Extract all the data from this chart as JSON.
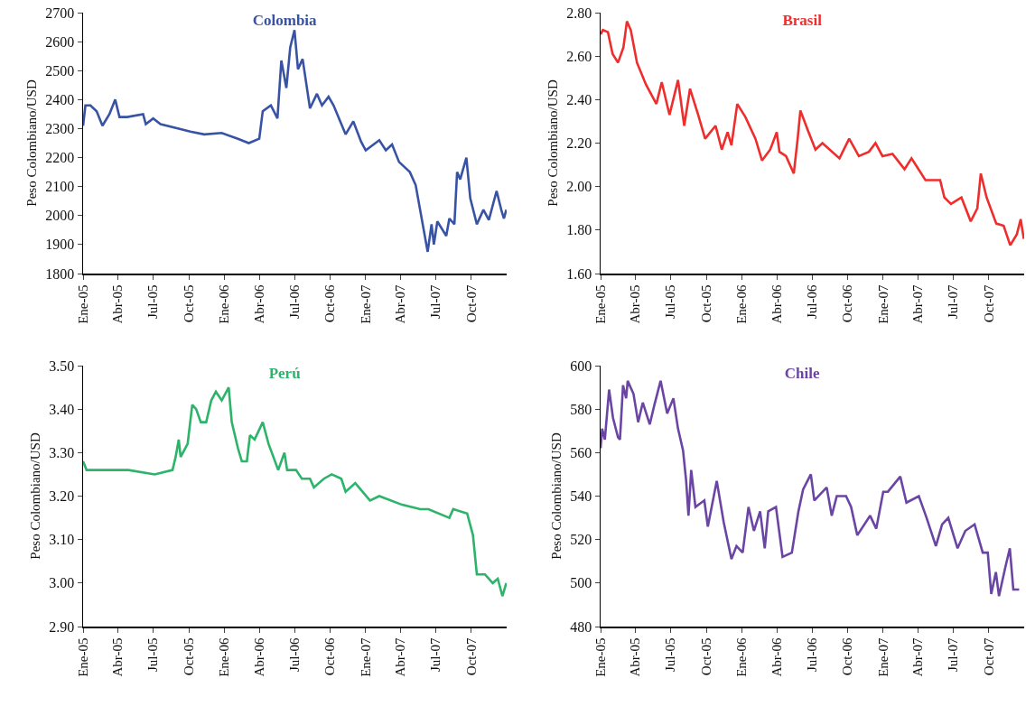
{
  "chart_data": [
    {
      "type": "line",
      "title": "Colombia",
      "ylabel": "Peso Colombiano/USD",
      "grid": false,
      "marker": "none",
      "line_style": "solid",
      "xlim": [
        "2005-01-01",
        "2007-12-31"
      ],
      "xticks": [
        {
          "value": "2005-01-01",
          "label": "Ene-05"
        },
        {
          "value": "2005-04-01",
          "label": "Abr-05"
        },
        {
          "value": "2005-07-01",
          "label": "Jul-05"
        },
        {
          "value": "2005-10-01",
          "label": "Oct-05"
        },
        {
          "value": "2006-01-01",
          "label": "Ene-06"
        },
        {
          "value": "2006-04-01",
          "label": "Abr-06"
        },
        {
          "value": "2006-07-01",
          "label": "Jul-06"
        },
        {
          "value": "2006-10-01",
          "label": "Oct-06"
        },
        {
          "value": "2007-01-01",
          "label": "Ene-07"
        },
        {
          "value": "2007-04-01",
          "label": "Abr-07"
        },
        {
          "value": "2007-07-01",
          "label": "Jul-07"
        },
        {
          "value": "2007-10-01",
          "label": "Oct-07"
        }
      ],
      "ylim": [
        1800,
        2700
      ],
      "yticks": [
        1800,
        1900,
        2000,
        2100,
        2200,
        2300,
        2400,
        2500,
        2600,
        2700
      ],
      "x": [
        "2005-01-01",
        "2005-01-07",
        "2005-01-20",
        "2005-02-05",
        "2005-02-20",
        "2005-03-10",
        "2005-03-25",
        "2005-04-05",
        "2005-04-25",
        "2005-06-05",
        "2005-06-12",
        "2005-07-01",
        "2005-07-20",
        "2005-09-05",
        "2005-10-05",
        "2005-11-10",
        "2005-12-25",
        "2006-02-05",
        "2006-03-05",
        "2006-04-01",
        "2006-04-10",
        "2006-05-01",
        "2006-05-18",
        "2006-05-28",
        "2006-06-10",
        "2006-06-20",
        "2006-07-01",
        "2006-07-10",
        "2006-07-22",
        "2006-08-10",
        "2006-08-28",
        "2006-09-10",
        "2006-09-27",
        "2006-10-10",
        "2006-11-10",
        "2006-11-30",
        "2006-12-20",
        "2007-01-01",
        "2007-02-05",
        "2007-02-22",
        "2007-03-10",
        "2007-03-28",
        "2007-04-25",
        "2007-05-10",
        "2007-06-10",
        "2007-06-20",
        "2007-06-26",
        "2007-07-05",
        "2007-07-28",
        "2007-08-05",
        "2007-08-18",
        "2007-08-25",
        "2007-09-02",
        "2007-09-18",
        "2007-09-28",
        "2007-10-15",
        "2007-11-01",
        "2007-11-15",
        "2007-12-05",
        "2007-12-18",
        "2007-12-24",
        "2007-12-30"
      ],
      "series": [
        {
          "color": "#3953a4",
          "values": [
            2310,
            2380,
            2380,
            2360,
            2310,
            2350,
            2400,
            2340,
            2340,
            2350,
            2315,
            2335,
            2315,
            2300,
            2290,
            2280,
            2285,
            2265,
            2250,
            2265,
            2360,
            2380,
            2335,
            2535,
            2440,
            2580,
            2640,
            2505,
            2540,
            2370,
            2420,
            2380,
            2410,
            2380,
            2280,
            2325,
            2255,
            2225,
            2260,
            2225,
            2245,
            2185,
            2150,
            2105,
            1875,
            1970,
            1900,
            1980,
            1930,
            1990,
            1970,
            2150,
            2125,
            2200,
            2060,
            1970,
            2020,
            1985,
            2085,
            2015,
            1990,
            2020
          ]
        }
      ]
    },
    {
      "type": "line",
      "title": "Brasil",
      "ylabel": "Peso Colombiano/USD",
      "grid": false,
      "marker": "none",
      "line_style": "solid",
      "xlim": [
        "2005-01-01",
        "2007-12-31"
      ],
      "xticks": [
        {
          "value": "2005-01-01",
          "label": "Ene-05"
        },
        {
          "value": "2005-04-01",
          "label": "Abr-05"
        },
        {
          "value": "2005-07-01",
          "label": "Jul-05"
        },
        {
          "value": "2005-10-01",
          "label": "Oct-05"
        },
        {
          "value": "2006-01-01",
          "label": "Ene-06"
        },
        {
          "value": "2006-04-01",
          "label": "Abr-06"
        },
        {
          "value": "2006-07-01",
          "label": "Jul-06"
        },
        {
          "value": "2006-10-01",
          "label": "Oct-06"
        },
        {
          "value": "2007-01-01",
          "label": "Ene-07"
        },
        {
          "value": "2007-04-01",
          "label": "Abr-07"
        },
        {
          "value": "2007-07-01",
          "label": "Jul-07"
        },
        {
          "value": "2007-10-01",
          "label": "Oct-07"
        }
      ],
      "ylim": [
        1.6,
        2.8
      ],
      "yticks": [
        {
          "value": 1.6,
          "label": "1.60"
        },
        {
          "value": 1.8,
          "label": "1.80"
        },
        {
          "value": 2.0,
          "label": "2.00"
        },
        {
          "value": 2.2,
          "label": "2.20"
        },
        {
          "value": 2.4,
          "label": "2.40"
        },
        {
          "value": 2.6,
          "label": "2.60"
        },
        {
          "value": 2.8,
          "label": "2.80"
        }
      ],
      "x": [
        "2005-01-01",
        "2005-01-07",
        "2005-01-20",
        "2005-02-01",
        "2005-02-15",
        "2005-03-01",
        "2005-03-10",
        "2005-03-20",
        "2005-04-05",
        "2005-04-28",
        "2005-05-25",
        "2005-06-08",
        "2005-06-28",
        "2005-07-20",
        "2005-08-05",
        "2005-08-20",
        "2005-09-10",
        "2005-09-28",
        "2005-10-25",
        "2005-11-10",
        "2005-11-25",
        "2005-12-05",
        "2005-12-20",
        "2006-01-10",
        "2006-02-05",
        "2006-02-22",
        "2006-03-15",
        "2006-04-01",
        "2006-04-08",
        "2006-04-25",
        "2006-05-15",
        "2006-05-25",
        "2006-06-01",
        "2006-06-20",
        "2006-07-10",
        "2006-07-28",
        "2006-09-10",
        "2006-10-05",
        "2006-10-30",
        "2006-11-25",
        "2006-12-12",
        "2006-12-30",
        "2007-01-25",
        "2007-02-25",
        "2007-03-15",
        "2007-04-20",
        "2007-05-28",
        "2007-06-08",
        "2007-06-25",
        "2007-07-22",
        "2007-08-15",
        "2007-09-01",
        "2007-09-10",
        "2007-09-25",
        "2007-10-20",
        "2007-11-08",
        "2007-11-25",
        "2007-12-12",
        "2007-12-22",
        "2007-12-30"
      ],
      "series": [
        {
          "color": "#ee2d2d",
          "values": [
            2.7,
            2.72,
            2.71,
            2.61,
            2.57,
            2.64,
            2.76,
            2.72,
            2.57,
            2.47,
            2.38,
            2.48,
            2.33,
            2.49,
            2.28,
            2.45,
            2.33,
            2.22,
            2.28,
            2.17,
            2.25,
            2.19,
            2.38,
            2.32,
            2.22,
            2.12,
            2.17,
            2.25,
            2.16,
            2.14,
            2.06,
            2.22,
            2.35,
            2.26,
            2.17,
            2.2,
            2.13,
            2.22,
            2.14,
            2.16,
            2.2,
            2.14,
            2.15,
            2.08,
            2.13,
            2.03,
            2.03,
            1.95,
            1.92,
            1.95,
            1.84,
            1.9,
            2.06,
            1.95,
            1.83,
            1.82,
            1.73,
            1.78,
            1.85,
            1.76
          ]
        }
      ]
    },
    {
      "type": "line",
      "title": "Perú",
      "ylabel": "Peso Colombiano/USD",
      "grid": false,
      "marker": "none",
      "line_style": "solid",
      "xlim": [
        "2005-01-01",
        "2007-12-31"
      ],
      "xticks": [
        {
          "value": "2005-01-01",
          "label": "Ene-05"
        },
        {
          "value": "2005-04-01",
          "label": "Abr-05"
        },
        {
          "value": "2005-07-01",
          "label": "Jul-05"
        },
        {
          "value": "2005-10-01",
          "label": "Oct-05"
        },
        {
          "value": "2006-01-01",
          "label": "Ene-06"
        },
        {
          "value": "2006-04-01",
          "label": "Abr-06"
        },
        {
          "value": "2006-07-01",
          "label": "Jul-06"
        },
        {
          "value": "2006-10-01",
          "label": "Oct-06"
        },
        {
          "value": "2007-01-01",
          "label": "Ene-07"
        },
        {
          "value": "2007-04-01",
          "label": "Abr-07"
        },
        {
          "value": "2007-07-01",
          "label": "Jul-07"
        },
        {
          "value": "2007-10-01",
          "label": "Oct-07"
        }
      ],
      "ylim": [
        2.9,
        3.5
      ],
      "yticks": [
        {
          "value": 2.9,
          "label": "2.90"
        },
        {
          "value": 3.0,
          "label": "3.00"
        },
        {
          "value": 3.1,
          "label": "3.10"
        },
        {
          "value": 3.2,
          "label": "3.20"
        },
        {
          "value": 3.3,
          "label": "3.30"
        },
        {
          "value": 3.4,
          "label": "3.40"
        },
        {
          "value": 3.5,
          "label": "3.50"
        }
      ],
      "x": [
        "2005-01-01",
        "2005-01-10",
        "2005-03-01",
        "2005-04-28",
        "2005-07-05",
        "2005-08-20",
        "2005-08-28",
        "2005-09-05",
        "2005-09-10",
        "2005-09-28",
        "2005-10-10",
        "2005-10-20",
        "2005-11-01",
        "2005-11-15",
        "2005-11-28",
        "2005-12-10",
        "2005-12-25",
        "2006-01-12",
        "2006-01-20",
        "2006-02-05",
        "2006-02-15",
        "2006-02-28",
        "2006-03-08",
        "2006-03-20",
        "2006-04-10",
        "2006-04-25",
        "2006-05-20",
        "2006-06-05",
        "2006-06-12",
        "2006-07-05",
        "2006-07-20",
        "2006-08-10",
        "2006-08-20",
        "2006-09-15",
        "2006-10-05",
        "2006-10-30",
        "2006-11-10",
        "2006-12-05",
        "2007-01-12",
        "2007-02-05",
        "2007-04-05",
        "2007-05-22",
        "2007-06-12",
        "2007-08-05",
        "2007-08-15",
        "2007-09-20",
        "2007-10-05",
        "2007-10-15",
        "2007-11-05",
        "2007-11-25",
        "2007-12-08",
        "2007-12-20",
        "2007-12-30"
      ],
      "series": [
        {
          "color": "#2db36a",
          "values": [
            3.28,
            3.26,
            3.26,
            3.26,
            3.25,
            3.26,
            3.29,
            3.33,
            3.29,
            3.32,
            3.41,
            3.4,
            3.37,
            3.37,
            3.42,
            3.44,
            3.42,
            3.45,
            3.37,
            3.31,
            3.28,
            3.28,
            3.34,
            3.33,
            3.37,
            3.32,
            3.26,
            3.3,
            3.26,
            3.26,
            3.24,
            3.24,
            3.22,
            3.24,
            3.25,
            3.24,
            3.21,
            3.23,
            3.19,
            3.2,
            3.18,
            3.17,
            3.17,
            3.15,
            3.17,
            3.16,
            3.11,
            3.02,
            3.02,
            3.0,
            3.01,
            2.97,
            3.0
          ]
        }
      ]
    },
    {
      "type": "line",
      "title": "Chile",
      "ylabel": "Peso Colombiano/USD",
      "grid": false,
      "marker": "none",
      "line_style": "solid",
      "xlim": [
        "2005-01-01",
        "2007-12-31"
      ],
      "xticks": [
        {
          "value": "2005-01-01",
          "label": "Ene-05"
        },
        {
          "value": "2005-04-01",
          "label": "Abr-05"
        },
        {
          "value": "2005-07-01",
          "label": "Jul-05"
        },
        {
          "value": "2005-10-01",
          "label": "Oct-05"
        },
        {
          "value": "2006-01-01",
          "label": "Ene-06"
        },
        {
          "value": "2006-04-01",
          "label": "Abr-06"
        },
        {
          "value": "2006-07-01",
          "label": "Jul-06"
        },
        {
          "value": "2006-10-01",
          "label": "Oct-06"
        },
        {
          "value": "2007-01-01",
          "label": "Ene-07"
        },
        {
          "value": "2007-04-01",
          "label": "Abr-07"
        },
        {
          "value": "2007-07-01",
          "label": "Jul-07"
        },
        {
          "value": "2007-10-01",
          "label": "Oct-07"
        }
      ],
      "ylim": [
        480,
        600
      ],
      "yticks": [
        480,
        500,
        520,
        540,
        560,
        580,
        600
      ],
      "x": [
        "2005-01-01",
        "2005-01-05",
        "2005-01-12",
        "2005-01-23",
        "2005-02-02",
        "2005-02-15",
        "2005-02-20",
        "2005-02-28",
        "2005-03-08",
        "2005-03-12",
        "2005-03-27",
        "2005-04-08",
        "2005-04-20",
        "2005-05-08",
        "2005-05-20",
        "2005-06-05",
        "2005-06-22",
        "2005-07-08",
        "2005-07-20",
        "2005-08-02",
        "2005-08-10",
        "2005-08-16",
        "2005-08-23",
        "2005-09-03",
        "2005-09-26",
        "2005-10-05",
        "2005-10-28",
        "2005-11-15",
        "2005-12-05",
        "2005-12-18",
        "2006-01-03",
        "2006-01-18",
        "2006-02-01",
        "2006-02-17",
        "2006-03-01",
        "2006-03-10",
        "2006-03-30",
        "2006-04-16",
        "2006-05-10",
        "2006-05-27",
        "2006-06-08",
        "2006-06-28",
        "2006-07-07",
        "2006-08-08",
        "2006-08-21",
        "2006-09-03",
        "2006-09-27",
        "2006-10-10",
        "2006-10-26",
        "2006-11-28",
        "2006-12-14",
        "2007-01-01",
        "2007-01-13",
        "2007-02-14",
        "2007-03-02",
        "2007-04-03",
        "2007-04-23",
        "2007-05-17",
        "2007-06-02",
        "2007-06-18",
        "2007-07-12",
        "2007-08-01",
        "2007-08-25",
        "2007-09-15",
        "2007-09-28",
        "2007-10-07",
        "2007-10-19",
        "2007-10-27",
        "2007-11-12",
        "2007-11-24",
        "2007-12-03",
        "2007-12-18"
      ],
      "series": [
        {
          "color": "#6b45a3",
          "values": [
            562,
            571,
            566,
            589,
            576,
            567,
            566,
            591,
            585,
            593,
            587,
            574,
            583,
            573,
            582,
            593,
            578,
            585,
            571,
            561,
            547,
            531,
            552,
            535,
            538,
            526,
            547,
            528,
            511,
            517,
            514,
            535,
            524,
            533,
            516,
            533,
            535,
            512,
            514,
            533,
            543,
            550,
            538,
            544,
            531,
            540,
            540,
            535,
            522,
            531,
            525,
            542,
            542,
            549,
            537,
            540,
            530,
            517,
            527,
            530,
            516,
            524,
            527,
            514,
            514,
            495,
            505,
            494,
            507,
            516,
            497,
            497
          ]
        }
      ]
    }
  ]
}
